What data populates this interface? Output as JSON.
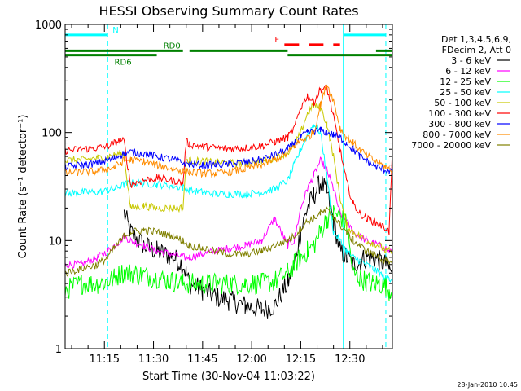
{
  "chart_data": {
    "type": "line",
    "title": "HESSI Observing Summary Count Rates",
    "xlabel": "Start Time (30-Nov-04 11:03:22)",
    "ylabel": "Count Rate (s⁻¹ detector⁻¹)",
    "y_scale": "log",
    "ylim": [
      1,
      1000
    ],
    "xlim_minutes_since_1103": [
      0,
      100
    ],
    "x_ticks": [
      {
        "label": "11:15",
        "minute": 12
      },
      {
        "label": "11:30",
        "minute": 27
      },
      {
        "label": "11:45",
        "minute": 42
      },
      {
        "label": "12:00",
        "minute": 57
      },
      {
        "label": "12:15",
        "minute": 72
      },
      {
        "label": "12:30",
        "minute": 87
      }
    ],
    "y_ticks": [
      "1",
      "10",
      "100",
      "1000"
    ],
    "legend": {
      "placement": "right",
      "header": [
        "Det 1,3,4,5,6,9,",
        "FDecim 2, Att 0"
      ],
      "entries": [
        {
          "label": "3 - 6 keV",
          "color": "#000000"
        },
        {
          "label": "6 - 12 keV",
          "color": "#ff00ff"
        },
        {
          "label": "12 - 25 keV",
          "color": "#00ff00"
        },
        {
          "label": "25 - 50 keV",
          "color": "#00ffff"
        },
        {
          "label": "50 - 100 keV",
          "color": "#c8c800"
        },
        {
          "label": "100 - 300 keV",
          "color": "#ff0000"
        },
        {
          "label": "300 - 800 keV",
          "color": "#0000ff"
        },
        {
          "label": "800 - 7000 keV",
          "color": "#ff8c00"
        },
        {
          "label": "7000 - 20000 keV",
          "color": "#808000"
        }
      ]
    },
    "flag_bars": [
      {
        "label": "N",
        "color": "#00ffff",
        "segments": [
          [
            0,
            13
          ],
          [
            85,
            98
          ]
        ],
        "value": 800
      },
      {
        "label": "F",
        "color": "#ff0000",
        "dashed": true,
        "segments": [
          [
            67,
            84
          ]
        ],
        "value": 650
      },
      {
        "label": "RD0",
        "color": "#008000",
        "segments": [
          [
            0,
            36
          ],
          [
            38,
            68
          ],
          [
            95,
            100
          ]
        ],
        "value": 570
      },
      {
        "label": "RD6",
        "color": "#008000",
        "segments": [
          [
            0,
            28
          ],
          [
            68,
            100
          ]
        ],
        "value": 520
      }
    ],
    "vlines": [
      {
        "minute": 0,
        "color": "#00ffff",
        "style": "solid"
      },
      {
        "minute": 13,
        "color": "#00ffff",
        "style": "dashed"
      },
      {
        "minute": 85,
        "color": "#00ffff",
        "style": "solid"
      },
      {
        "minute": 98,
        "color": "#00ffff",
        "style": "dashed"
      }
    ],
    "x": [
      0,
      5,
      10,
      13,
      15,
      17,
      18,
      20,
      24,
      28,
      33,
      36,
      37,
      38,
      42,
      46,
      50,
      55,
      60,
      64,
      68,
      70,
      72,
      74,
      76,
      78,
      80,
      82,
      84,
      86,
      88,
      90,
      92,
      94,
      96,
      98,
      99,
      100
    ],
    "series": [
      {
        "name": "3 - 6 keV",
        "color": "#000000",
        "values": [
          null,
          null,
          null,
          null,
          null,
          null,
          18,
          12,
          9,
          8,
          7,
          6,
          5,
          4,
          3.5,
          3,
          2.8,
          2.5,
          2.3,
          2.5,
          4,
          6,
          12,
          20,
          26,
          35,
          28,
          15,
          8,
          7,
          6,
          6.5,
          7,
          7,
          6.5,
          6,
          5.5,
          5
        ]
      },
      {
        "name": "6 - 12 keV",
        "color": "#ff00ff",
        "values": [
          6,
          6,
          7,
          8,
          9,
          10,
          11,
          10,
          9,
          8,
          7.5,
          7,
          7,
          7,
          7.5,
          8,
          8.5,
          9,
          10,
          16,
          9,
          10,
          20,
          30,
          40,
          55,
          45,
          30,
          18,
          15,
          12,
          11,
          10,
          9.5,
          9,
          8.5,
          8,
          8
        ]
      },
      {
        "name": "12 - 25 keV",
        "color": "#00ff00",
        "values": [
          3.5,
          4,
          4,
          4.2,
          4.5,
          5,
          5,
          5,
          4.8,
          4.5,
          4.2,
          4,
          4,
          4,
          4,
          4,
          4,
          4,
          4,
          4.2,
          5,
          6,
          7,
          8,
          9,
          12,
          16,
          18,
          17,
          14,
          5,
          4.5,
          4.2,
          4,
          4,
          3.8,
          3.5,
          3.5
        ]
      },
      {
        "name": "25 - 50 keV",
        "color": "#00ffff",
        "values": [
          27,
          28,
          28,
          29,
          30,
          32,
          33,
          34,
          34,
          33,
          32,
          31,
          30,
          29,
          28,
          27,
          27,
          27,
          28,
          30,
          36,
          50,
          70,
          95,
          120,
          100,
          40,
          12,
          10,
          8,
          7,
          6.5,
          6,
          5.5,
          5,
          4.5,
          4.5,
          4.5
        ]
      },
      {
        "name": "50 - 100 keV",
        "color": "#c8c800",
        "values": [
          55,
          56,
          58,
          60,
          62,
          64,
          62,
          20,
          21,
          20,
          20,
          20,
          56,
          55,
          54,
          53,
          52,
          52,
          54,
          58,
          65,
          75,
          100,
          150,
          180,
          170,
          120,
          60,
          25,
          14,
          12,
          11,
          10,
          9.5,
          9,
          8,
          8,
          8
        ]
      },
      {
        "name": "100 - 300 keV",
        "color": "#ff0000",
        "values": [
          68,
          70,
          72,
          75,
          80,
          85,
          82,
          33,
          36,
          38,
          36,
          34,
          82,
          78,
          74,
          72,
          71,
          72,
          75,
          82,
          90,
          110,
          170,
          220,
          190,
          250,
          260,
          140,
          70,
          35,
          22,
          18,
          16,
          15,
          14,
          13,
          12,
          70
        ]
      },
      {
        "name": "300 - 800 keV",
        "color": "#0000ff",
        "values": [
          48,
          50,
          52,
          55,
          58,
          62,
          64,
          66,
          64,
          60,
          56,
          52,
          52,
          51,
          50,
          50,
          51,
          53,
          56,
          62,
          70,
          80,
          90,
          100,
          102,
          105,
          100,
          95,
          90,
          80,
          70,
          60,
          55,
          50,
          47,
          45,
          44,
          44
        ]
      },
      {
        "name": "800 - 7000 keV",
        "color": "#ff8c00",
        "values": [
          42,
          43,
          44,
          46,
          48,
          52,
          55,
          56,
          54,
          50,
          46,
          44,
          44,
          43,
          42,
          42,
          43,
          46,
          50,
          56,
          64,
          75,
          85,
          90,
          100,
          180,
          280,
          200,
          110,
          90,
          80,
          70,
          62,
          56,
          52,
          48,
          46,
          46
        ]
      },
      {
        "name": "7000 - 20000 keV",
        "color": "#808000",
        "values": [
          5,
          5.5,
          6,
          7,
          8.5,
          10,
          11,
          12,
          12.5,
          12,
          11,
          10,
          9.5,
          9,
          8.5,
          8,
          7.5,
          7.5,
          8,
          9,
          10,
          11,
          13,
          15,
          16,
          18,
          19,
          17,
          14,
          12,
          10,
          9,
          8,
          7.5,
          7,
          6.5,
          6,
          6
        ]
      }
    ]
  },
  "footer": {
    "timestamp": "28-Jan-2010 10:45"
  }
}
